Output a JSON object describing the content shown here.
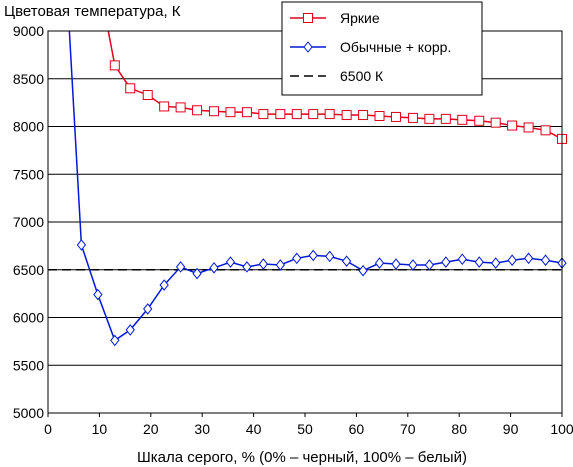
{
  "chart_data": {
    "type": "line",
    "ylabel": "Цветовая температура, К",
    "xlabel": "Шкала серого, % (0% – черный, 100% – белый)",
    "xlim": [
      0,
      100
    ],
    "ylim": [
      5000,
      9000
    ],
    "xticks": [
      0,
      10,
      20,
      30,
      40,
      50,
      60,
      70,
      80,
      90,
      100
    ],
    "yticks": [
      5000,
      5500,
      6000,
      6500,
      7000,
      7500,
      8000,
      8500,
      9000
    ],
    "grid": "horizontal",
    "legend_position": "top-right",
    "series": [
      {
        "name": "Яркие",
        "color": "#e0001b",
        "marker": "square",
        "x": [
          13,
          16,
          19.4,
          22.6,
          25.8,
          29,
          32.3,
          35.5,
          38.7,
          41.9,
          45.2,
          48.4,
          51.6,
          54.8,
          58.1,
          61.3,
          64.5,
          67.7,
          71,
          74.2,
          77.4,
          80.6,
          83.9,
          87.1,
          90.3,
          93.5,
          96.8,
          100
        ],
        "y": [
          8640,
          8400,
          8330,
          8210,
          8200,
          8170,
          8160,
          8150,
          8150,
          8130,
          8130,
          8130,
          8130,
          8130,
          8120,
          8120,
          8110,
          8100,
          8090,
          8080,
          8080,
          8070,
          8060,
          8040,
          8010,
          7990,
          7960,
          7870
        ]
      },
      {
        "name": "Обычные + корр.",
        "color": "#0018d6",
        "marker": "diamond",
        "x": [
          6.5,
          9.7,
          13,
          16,
          19.4,
          22.6,
          25.8,
          29,
          32.3,
          35.5,
          38.7,
          41.9,
          45.2,
          48.4,
          51.6,
          54.8,
          58.1,
          61.3,
          64.5,
          67.7,
          71,
          74.2,
          77.4,
          80.6,
          83.9,
          87.1,
          90.3,
          93.5,
          96.8,
          100
        ],
        "y": [
          6760,
          6240,
          5760,
          5870,
          6090,
          6340,
          6530,
          6460,
          6520,
          6580,
          6530,
          6560,
          6550,
          6620,
          6650,
          6640,
          6590,
          6490,
          6570,
          6560,
          6550,
          6550,
          6580,
          6610,
          6580,
          6570,
          6600,
          6620,
          6600,
          6570
        ]
      },
      {
        "name": "6500 К",
        "color": "#000000",
        "marker": "none",
        "dashed": true,
        "x": [
          0,
          100
        ],
        "y": [
          6500,
          6500
        ]
      }
    ]
  }
}
